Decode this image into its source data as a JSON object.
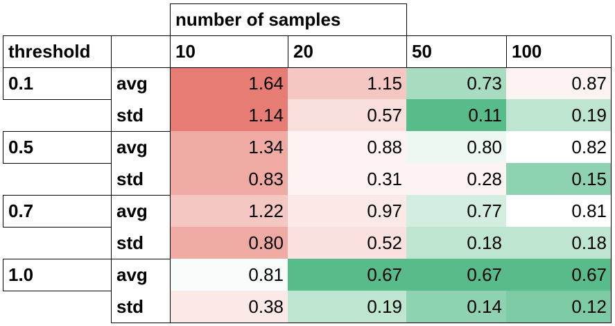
{
  "chart_data": {
    "type": "heatmap",
    "column_group_header": "number of samples",
    "row_header": "threshold",
    "columns": [
      "10",
      "20",
      "50",
      "100"
    ],
    "rows": [
      {
        "threshold": "0.1",
        "stats": [
          {
            "stat": "avg",
            "values": [
              "1.64",
              "1.15",
              "0.73",
              "0.87"
            ]
          },
          {
            "stat": "std",
            "values": [
              "1.14",
              "0.57",
              "0.11",
              "0.19"
            ]
          }
        ]
      },
      {
        "threshold": "0.5",
        "stats": [
          {
            "stat": "avg",
            "values": [
              "1.34",
              "0.88",
              "0.80",
              "0.82"
            ]
          },
          {
            "stat": "std",
            "values": [
              "0.83",
              "0.31",
              "0.28",
              "0.15"
            ]
          }
        ]
      },
      {
        "threshold": "0.7",
        "stats": [
          {
            "stat": "avg",
            "values": [
              "1.22",
              "0.97",
              "0.77",
              "0.81"
            ]
          },
          {
            "stat": "std",
            "values": [
              "0.80",
              "0.52",
              "0.18",
              "0.18"
            ]
          }
        ]
      },
      {
        "threshold": "1.0",
        "stats": [
          {
            "stat": "avg",
            "values": [
              "0.81",
              "0.67",
              "0.67",
              "0.67"
            ]
          },
          {
            "stat": "std",
            "values": [
              "0.38",
              "0.19",
              "0.14",
              "0.12"
            ]
          }
        ]
      }
    ],
    "cell_colors": [
      [
        "#e67c73",
        "#f4c7c3",
        "#a8dcc1",
        "#fdf3f2"
      ],
      [
        "#e67c73",
        "#f9dfdc",
        "#57bb8a",
        "#bde5d0"
      ],
      [
        "#efaaa4",
        "#fdf3f2",
        "#eef8f3",
        "#ffffff"
      ],
      [
        "#efaaa4",
        "#fdf3f2",
        "#fdf3f2",
        "#8fd2b1"
      ],
      [
        "#f4c7c3",
        "#fbe9e7",
        "#d3eee0",
        "#ffffff"
      ],
      [
        "#efaaa4",
        "#fae1df",
        "#bde5d0",
        "#bde5d0"
      ],
      [
        "#f7fbf9",
        "#57bb8a",
        "#57bb8a",
        "#57bb8a"
      ],
      [
        "#fbe9e7",
        "#bde5d0",
        "#8fd2b1",
        "#7dcba4"
      ]
    ]
  }
}
